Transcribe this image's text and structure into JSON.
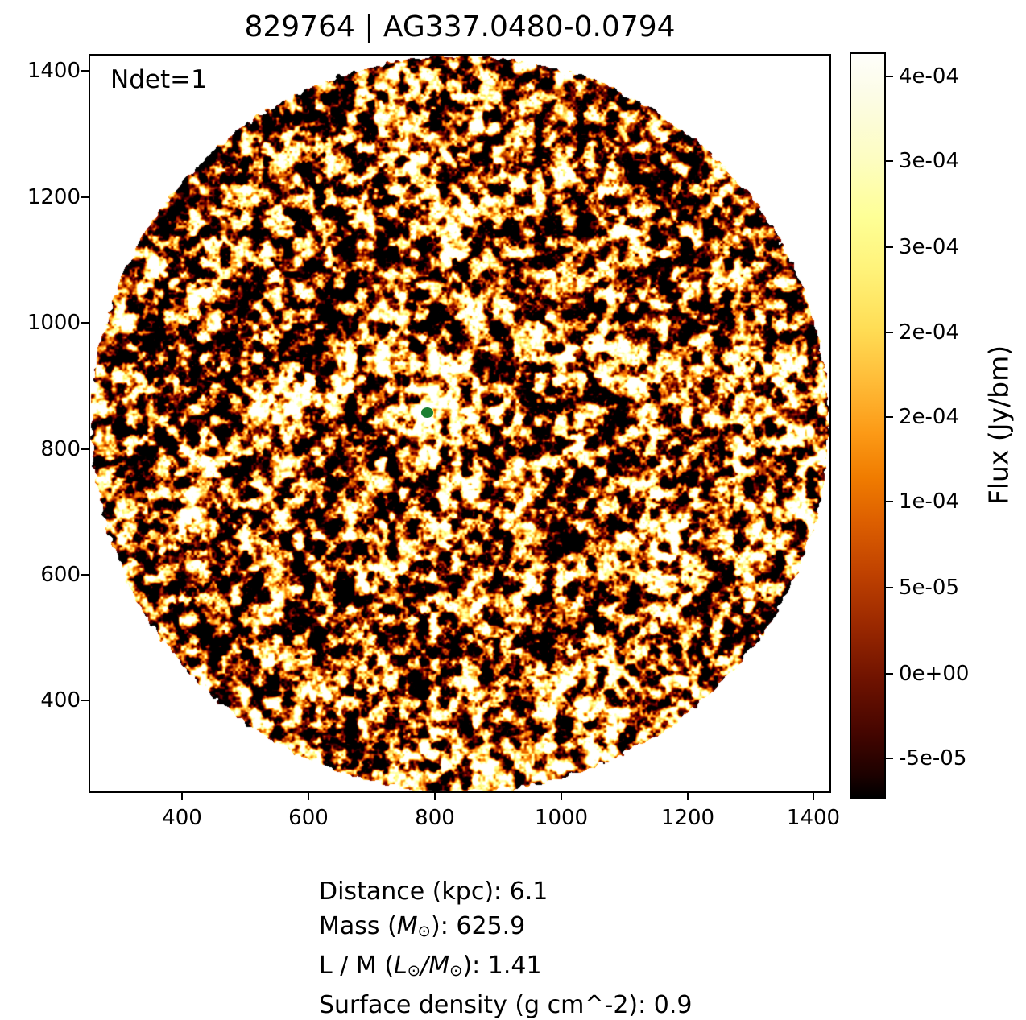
{
  "title": "829764 | AG337.0480-0.0794",
  "annotation": "Ndet=1",
  "axes": {
    "x_ticks": [
      "400",
      "600",
      "800",
      "1000",
      "1200",
      "1400"
    ],
    "y_ticks": [
      "1400",
      "1200",
      "1000",
      "800",
      "600",
      "400"
    ]
  },
  "colorbar": {
    "label": "Flux (Jy/bm)",
    "ticks": [
      "4e-04",
      "3e-04",
      "3e-04",
      "2e-04",
      "2e-04",
      "1e-04",
      "5e-05",
      "0e+00",
      "-5e-05"
    ],
    "gradient": [
      [
        "#fefefb",
        "0%"
      ],
      [
        "#fcfce4",
        "6%"
      ],
      [
        "#fdfdc2",
        "14%"
      ],
      [
        "#feff96",
        "22%"
      ],
      [
        "#fff37a",
        "29%"
      ],
      [
        "#ffdd55",
        "37%"
      ],
      [
        "#ffbc38",
        "44%"
      ],
      [
        "#fc9a16",
        "51%"
      ],
      [
        "#f07c00",
        "57%"
      ],
      [
        "#dd5f00",
        "63%"
      ],
      [
        "#bf4100",
        "70%"
      ],
      [
        "#9a2800",
        "77%"
      ],
      [
        "#701300",
        "84%"
      ],
      [
        "#470600",
        "91%"
      ],
      [
        "#1d0100",
        "97%"
      ],
      [
        "#000000",
        "100%"
      ]
    ]
  },
  "marker": {
    "color": "#1b7e31"
  },
  "info_lines": [
    {
      "segments": [
        {
          "t": "Distance (kpc): 6.1"
        }
      ]
    },
    {
      "segments": [
        {
          "t": "Mass ("
        },
        {
          "t": "M",
          "style": "italic"
        },
        {
          "t": "⊙",
          "style": "sub"
        },
        {
          "t": "): 625.9"
        }
      ]
    },
    {
      "segments": [
        {
          "t": "L / M ("
        },
        {
          "t": "L",
          "style": "italic"
        },
        {
          "t": "⊙",
          "style": "sub"
        },
        {
          "t": "/",
          "style": "italic"
        },
        {
          "t": "M",
          "style": "italic"
        },
        {
          "t": "⊙",
          "style": "sub"
        },
        {
          "t": "): 1.41"
        }
      ]
    },
    {
      "segments": [
        {
          "t": "Surface density (g cm^-2): 0.9"
        }
      ]
    }
  ],
  "chart_data": {
    "type": "heatmap",
    "title": "829764 | AG337.0480-0.0794",
    "colormap": "afmhot",
    "field_shape": "circular cutout of noisy radio flux map on white background",
    "x_range": [
      251,
      1427
    ],
    "y_range": [
      251,
      1427
    ],
    "x_ticks": [
      400,
      600,
      800,
      1000,
      1200,
      1400
    ],
    "y_ticks": [
      400,
      600,
      800,
      1000,
      1200,
      1400
    ],
    "colorbar_label": "Flux (Jy/bm)",
    "colorbar_tick_labels": [
      "4e-04",
      "3e-04",
      "3e-04",
      "2e-04",
      "2e-04",
      "1e-04",
      "5e-05",
      "0e+00",
      "-5e-05"
    ],
    "colorbar_value_range": [
      -7e-05,
      0.00044
    ],
    "annotation": "Ndet=1",
    "marker": {
      "x": 788,
      "y": 860,
      "color": "green",
      "meaning": "detected source position"
    },
    "bright_source": {
      "x": 788,
      "y": 860,
      "note": "compact bright emission peak surrounding marker"
    },
    "stats": {
      "distance_kpc": 6.1,
      "mass_msun": 625.9,
      "l_over_m_lsun_per_msun": 1.41,
      "surface_density_g_cm2": 0.9
    }
  }
}
